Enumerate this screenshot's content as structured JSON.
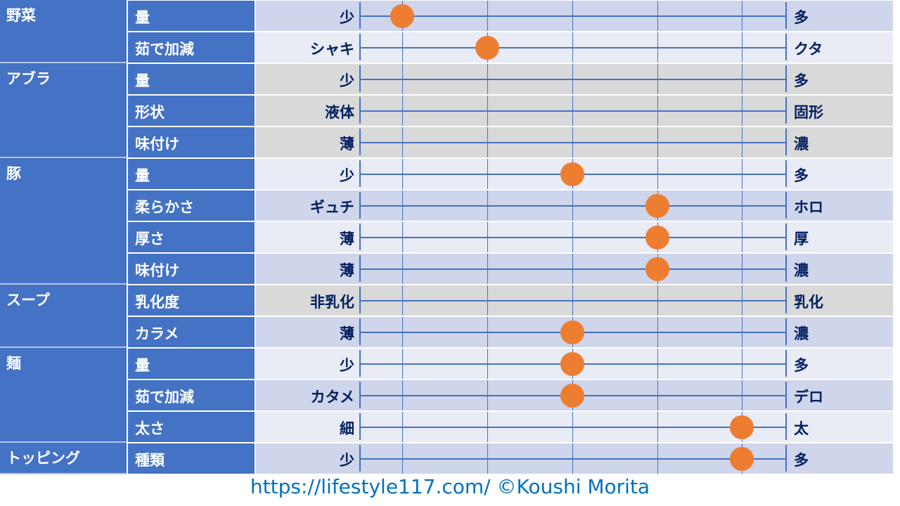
{
  "colors": {
    "header": "#4472c4",
    "row_a": "#cfd5ea",
    "row_b": "#e9ebf5",
    "row_na": "#d9d9d9",
    "dot": "#ed7d31",
    "line": "#4472c4",
    "text": "#002060"
  },
  "chart_data": {
    "type": "table",
    "scale": {
      "min": 1,
      "max": 5
    },
    "groups": [
      {
        "category": "野菜",
        "rows": [
          {
            "item": "量",
            "left": "少",
            "right": "多",
            "value": 1
          },
          {
            "item": "茹で加減",
            "left": "シャキ",
            "right": "クタ",
            "value": 2
          }
        ]
      },
      {
        "category": "アブラ",
        "rows": [
          {
            "item": "量",
            "left": "少",
            "right": "多",
            "value": null
          },
          {
            "item": "形状",
            "left": "液体",
            "right": "固形",
            "value": null
          },
          {
            "item": "味付け",
            "left": "薄",
            "right": "濃",
            "value": null
          }
        ]
      },
      {
        "category": "豚",
        "rows": [
          {
            "item": "量",
            "left": "少",
            "right": "多",
            "value": 3
          },
          {
            "item": "柔らかさ",
            "left": "ギュチ",
            "right": "ホロ",
            "value": 4
          },
          {
            "item": "厚さ",
            "left": "薄",
            "right": "厚",
            "value": 4
          },
          {
            "item": "味付け",
            "left": "薄",
            "right": "濃",
            "value": 4
          }
        ]
      },
      {
        "category": "スープ",
        "rows": [
          {
            "item": "乳化度",
            "left": "非乳化",
            "right": "乳化",
            "value": null
          },
          {
            "item": "カラメ",
            "left": "薄",
            "right": "濃",
            "value": 3
          }
        ]
      },
      {
        "category": "麺",
        "rows": [
          {
            "item": "量",
            "left": "少",
            "right": "多",
            "value": 3
          },
          {
            "item": "茹で加減",
            "left": "カタメ",
            "right": "デロ",
            "value": 3
          },
          {
            "item": "太さ",
            "left": "細",
            "right": "太",
            "value": 5
          }
        ]
      },
      {
        "category": "トッピング",
        "rows": [
          {
            "item": "種類",
            "left": "少",
            "right": "多",
            "value": 5
          }
        ]
      }
    ]
  },
  "footer": "https://lifestyle117.com/  ©Koushi Morita"
}
